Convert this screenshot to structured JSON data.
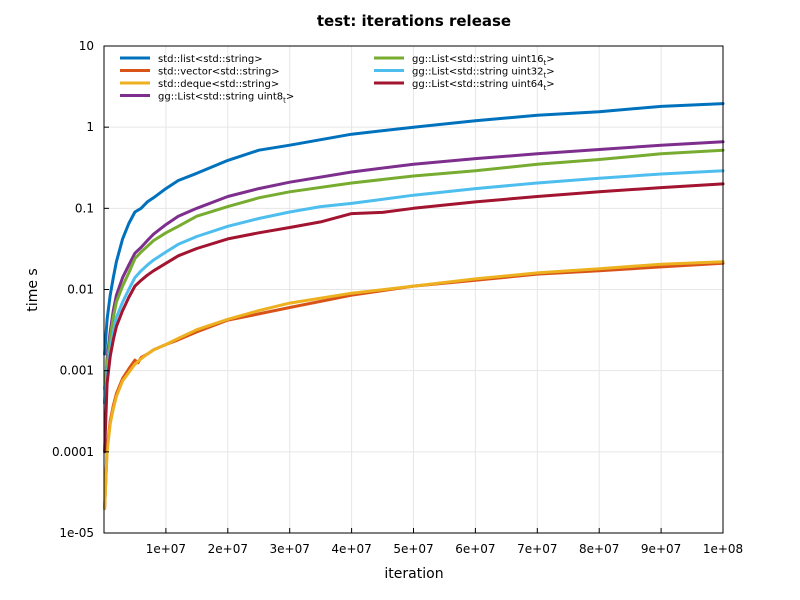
{
  "chart_data": {
    "type": "line",
    "title": "test: iterations release",
    "xlabel": "iteration",
    "ylabel": "time s",
    "xscale": "linear",
    "yscale": "log",
    "xlim": [
      0,
      100000000
    ],
    "ylim": [
      1e-05,
      10
    ],
    "grid": true,
    "legend_position": "top-left",
    "xticks": [
      10000000,
      20000000,
      30000000,
      40000000,
      50000000,
      60000000,
      70000000,
      80000000,
      90000000,
      100000000
    ],
    "xtick_labels": [
      "1e+07",
      "2e+07",
      "3e+07",
      "4e+07",
      "5e+07",
      "6e+07",
      "7e+07",
      "8e+07",
      "9e+07",
      "1e+08"
    ],
    "yticks": [
      1e-05,
      0.0001,
      0.001,
      0.01,
      0.1,
      1,
      10
    ],
    "ytick_labels": [
      "1e-05",
      "0.0001",
      "0.001",
      "0.01",
      "0.1",
      "1",
      "10"
    ],
    "series": [
      {
        "name": "std::list<std::string>",
        "color": "#0072bd",
        "x": [
          100000,
          500000,
          1000000,
          1500000,
          2000000,
          3000000,
          4000000,
          5000000,
          6000000,
          7000000,
          8000000,
          10000000,
          12000000,
          15000000,
          20000000,
          25000000,
          30000000,
          40000000,
          50000000,
          60000000,
          70000000,
          80000000,
          90000000,
          100000000
        ],
        "y": [
          0.0016,
          0.0043,
          0.0085,
          0.014,
          0.022,
          0.042,
          0.065,
          0.09,
          0.1,
          0.12,
          0.135,
          0.175,
          0.22,
          0.27,
          0.39,
          0.52,
          0.6,
          0.82,
          1.0,
          1.2,
          1.4,
          1.55,
          1.8,
          1.95
        ]
      },
      {
        "name": "std::vector<std::string>",
        "color": "#d95319",
        "x": [
          100000,
          500000,
          1000000,
          1500000,
          2000000,
          3000000,
          4000000,
          5000000,
          5500000,
          6000000,
          7000000,
          8000000,
          10000000,
          12000000,
          15000000,
          20000000,
          25000000,
          30000000,
          40000000,
          50000000,
          60000000,
          70000000,
          80000000,
          90000000,
          100000000
        ],
        "y": [
          2e-05,
          0.00011,
          0.00024,
          0.00037,
          0.00052,
          0.0008,
          0.00105,
          0.00135,
          0.00125,
          0.00145,
          0.0016,
          0.0018,
          0.0021,
          0.0024,
          0.003,
          0.0042,
          0.005,
          0.006,
          0.0085,
          0.011,
          0.013,
          0.0155,
          0.017,
          0.019,
          0.021
        ]
      },
      {
        "name": "std::deque<std::string>",
        "color": "#edb120",
        "x": [
          100000,
          500000,
          1000000,
          1500000,
          2000000,
          3000000,
          4000000,
          5000000,
          6000000,
          7000000,
          8000000,
          10000000,
          12000000,
          15000000,
          20000000,
          25000000,
          30000000,
          40000000,
          50000000,
          60000000,
          70000000,
          80000000,
          90000000,
          100000000
        ],
        "y": [
          2e-05,
          0.0001,
          0.00022,
          0.00034,
          0.00048,
          0.00075,
          0.00095,
          0.0012,
          0.0014,
          0.0016,
          0.0018,
          0.0021,
          0.0025,
          0.0032,
          0.0043,
          0.0055,
          0.0068,
          0.009,
          0.011,
          0.0135,
          0.016,
          0.018,
          0.0205,
          0.022
        ]
      },
      {
        "name": "gg::List<std::string uint8_t>",
        "color": "#7e2f8e",
        "x": [
          100000,
          500000,
          1000000,
          1500000,
          2000000,
          3000000,
          4000000,
          5000000,
          6000000,
          7000000,
          8000000,
          10000000,
          12000000,
          15000000,
          20000000,
          25000000,
          30000000,
          40000000,
          50000000,
          60000000,
          70000000,
          80000000,
          90000000,
          100000000
        ],
        "y": [
          0.0004,
          0.0014,
          0.003,
          0.0055,
          0.0085,
          0.014,
          0.02,
          0.028,
          0.033,
          0.04,
          0.048,
          0.063,
          0.08,
          0.1,
          0.14,
          0.175,
          0.21,
          0.28,
          0.35,
          0.41,
          0.47,
          0.53,
          0.6,
          0.66
        ]
      },
      {
        "name": "gg::List<std::string uint16_t>",
        "color": "#77ac30",
        "x": [
          100000,
          500000,
          1000000,
          1500000,
          2000000,
          3000000,
          4000000,
          5000000,
          6000000,
          7000000,
          8000000,
          10000000,
          12000000,
          15000000,
          20000000,
          25000000,
          30000000,
          40000000,
          50000000,
          60000000,
          70000000,
          80000000,
          90000000,
          100000000
        ],
        "y": [
          0.0006,
          0.0012,
          0.0025,
          0.0045,
          0.007,
          0.011,
          0.016,
          0.024,
          0.029,
          0.034,
          0.04,
          0.05,
          0.06,
          0.08,
          0.105,
          0.135,
          0.16,
          0.205,
          0.25,
          0.29,
          0.35,
          0.4,
          0.47,
          0.52
        ]
      },
      {
        "name": "gg::List<std::string uint32_t>",
        "color": "#4dbeee",
        "x": [
          100000,
          500000,
          1000000,
          1500000,
          2000000,
          3000000,
          4000000,
          5000000,
          6000000,
          7000000,
          8000000,
          10000000,
          12000000,
          15000000,
          20000000,
          25000000,
          30000000,
          35000000,
          40000000,
          50000000,
          60000000,
          70000000,
          80000000,
          90000000,
          100000000
        ],
        "y": [
          0.0004,
          0.0009,
          0.0018,
          0.003,
          0.0045,
          0.007,
          0.01,
          0.014,
          0.017,
          0.02,
          0.023,
          0.029,
          0.036,
          0.045,
          0.06,
          0.075,
          0.09,
          0.105,
          0.115,
          0.145,
          0.175,
          0.205,
          0.235,
          0.265,
          0.29
        ]
      },
      {
        "name": "gg::List<std::string uint64_t>",
        "color": "#a2142f",
        "x": [
          100000,
          500000,
          1000000,
          1500000,
          2000000,
          3000000,
          4000000,
          5000000,
          6000000,
          7000000,
          8000000,
          10000000,
          12000000,
          15000000,
          20000000,
          25000000,
          30000000,
          35000000,
          40000000,
          45000000,
          50000000,
          60000000,
          70000000,
          80000000,
          90000000,
          100000000
        ],
        "y": [
          0.0001,
          0.0007,
          0.0015,
          0.0024,
          0.0035,
          0.0055,
          0.008,
          0.011,
          0.013,
          0.015,
          0.017,
          0.021,
          0.026,
          0.032,
          0.042,
          0.05,
          0.058,
          0.068,
          0.086,
          0.089,
          0.1,
          0.12,
          0.14,
          0.16,
          0.18,
          0.2
        ]
      }
    ]
  },
  "legend": {
    "entries": [
      {
        "prefix": "std::list<std::string>",
        "sub": "",
        "suffix": ""
      },
      {
        "prefix": "std::vector<std::string>",
        "sub": "",
        "suffix": ""
      },
      {
        "prefix": "std::deque<std::string>",
        "sub": "",
        "suffix": ""
      },
      {
        "prefix": "gg::List<std::string uint8",
        "sub": "t",
        "suffix": ">"
      },
      {
        "prefix": "gg::List<std::string uint16",
        "sub": "t",
        "suffix": ">"
      },
      {
        "prefix": "gg::List<std::string uint32",
        "sub": "t",
        "suffix": ">"
      },
      {
        "prefix": "gg::List<std::string uint64",
        "sub": "t",
        "suffix": ">"
      }
    ]
  }
}
